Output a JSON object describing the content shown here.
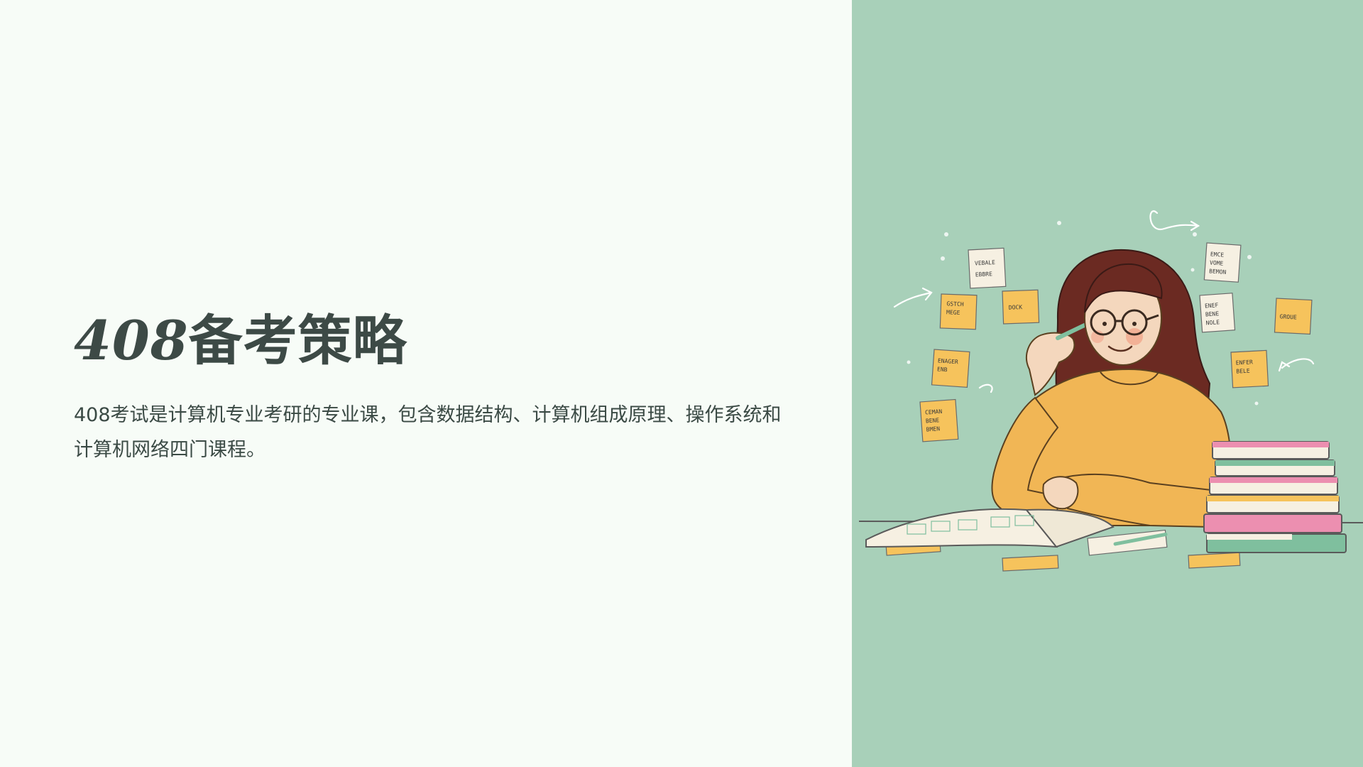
{
  "slide": {
    "title": "408备考策略",
    "description": "408考试是计算机专业考研的专业课，包含数据结构、计算机组成原理、操作系统和计算机网络四门课程。"
  },
  "illustration": {
    "subject": "student-studying-illustration",
    "colors": {
      "background": "#a8d0b9",
      "sweater": "#f1b655",
      "hair": "#6b2a22",
      "sticky_note": "#f6c35c",
      "paper_note": "#f6f0e2",
      "book_pink": "#ec8fb0",
      "book_green": "#7fbf9e"
    }
  }
}
